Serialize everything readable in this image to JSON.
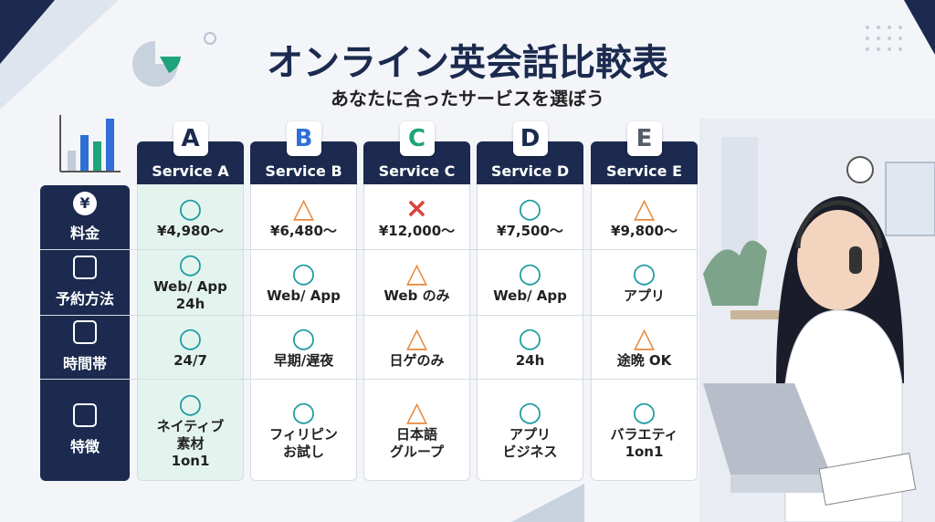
{
  "title": "オンライン英会話比較表",
  "subtitle": "あなたに合ったサービスを選ぼう",
  "services": [
    {
      "letter": "A",
      "name": "Service A",
      "color": "#1b2a4e"
    },
    {
      "letter": "B",
      "name": "Service B",
      "color": "#2f6fd6"
    },
    {
      "letter": "C",
      "name": "Service C",
      "color": "#1fa37a"
    },
    {
      "letter": "D",
      "name": "Service D",
      "color": "#1b2a4e"
    },
    {
      "letter": "E",
      "name": "Service E",
      "color": "#555d6b"
    }
  ],
  "rows": [
    {
      "label": "料金",
      "icon": "¥",
      "cells": [
        {
          "symbol": "○",
          "color": "#1a9aa0",
          "lines": [
            "¥4,980〜"
          ]
        },
        {
          "symbol": "△",
          "color": "#e8893a",
          "lines": [
            "¥6,480〜"
          ]
        },
        {
          "symbol": "×",
          "color": "#d8443a",
          "lines": [
            "¥12,000〜"
          ]
        },
        {
          "symbol": "○",
          "color": "#1a9aa0",
          "lines": [
            "¥7,500〜"
          ]
        },
        {
          "symbol": "△",
          "color": "#e8893a",
          "lines": [
            "¥9,800〜"
          ]
        }
      ]
    },
    {
      "label": "予約方法",
      "cells": [
        {
          "symbol": "○",
          "color": "#1a9aa0",
          "lines": [
            "Web/ App",
            "24h"
          ]
        },
        {
          "symbol": "○",
          "color": "#1a9aa0",
          "lines": [
            "Web/ App"
          ]
        },
        {
          "symbol": "△",
          "color": "#e8893a",
          "lines": [
            "Web のみ"
          ]
        },
        {
          "symbol": "○",
          "color": "#1a9aa0",
          "lines": [
            "Web/ App"
          ]
        },
        {
          "symbol": "○",
          "color": "#1a9aa0",
          "lines": [
            "アプリ"
          ]
        }
      ]
    },
    {
      "label": "時間帯",
      "cells": [
        {
          "symbol": "○",
          "color": "#1a9aa0",
          "lines": [
            "24/7"
          ]
        },
        {
          "symbol": "○",
          "color": "#1a9aa0",
          "lines": [
            "早期/遅夜"
          ]
        },
        {
          "symbol": "△",
          "color": "#e8893a",
          "lines": [
            "日ゲのみ"
          ]
        },
        {
          "symbol": "○",
          "color": "#1a9aa0",
          "lines": [
            "24h"
          ]
        },
        {
          "symbol": "△",
          "color": "#e8893a",
          "lines": [
            "途晩 OK"
          ]
        }
      ]
    },
    {
      "label": "特徴",
      "cells": [
        {
          "symbol": "○",
          "color": "#1a9aa0",
          "lines": [
            "ネイティブ",
            "素材",
            "1on1"
          ]
        },
        {
          "symbol": "○",
          "color": "#1a9aa0",
          "lines": [
            "フィリピン",
            "お試し"
          ]
        },
        {
          "symbol": "△",
          "color": "#e8893a",
          "lines": [
            "日本語",
            "グループ"
          ]
        },
        {
          "symbol": "○",
          "color": "#1a9aa0",
          "lines": [
            "アプリ",
            "ビジネス"
          ]
        },
        {
          "symbol": "○",
          "color": "#1a9aa0",
          "lines": [
            "バラエティ",
            "1on1"
          ]
        }
      ]
    }
  ]
}
